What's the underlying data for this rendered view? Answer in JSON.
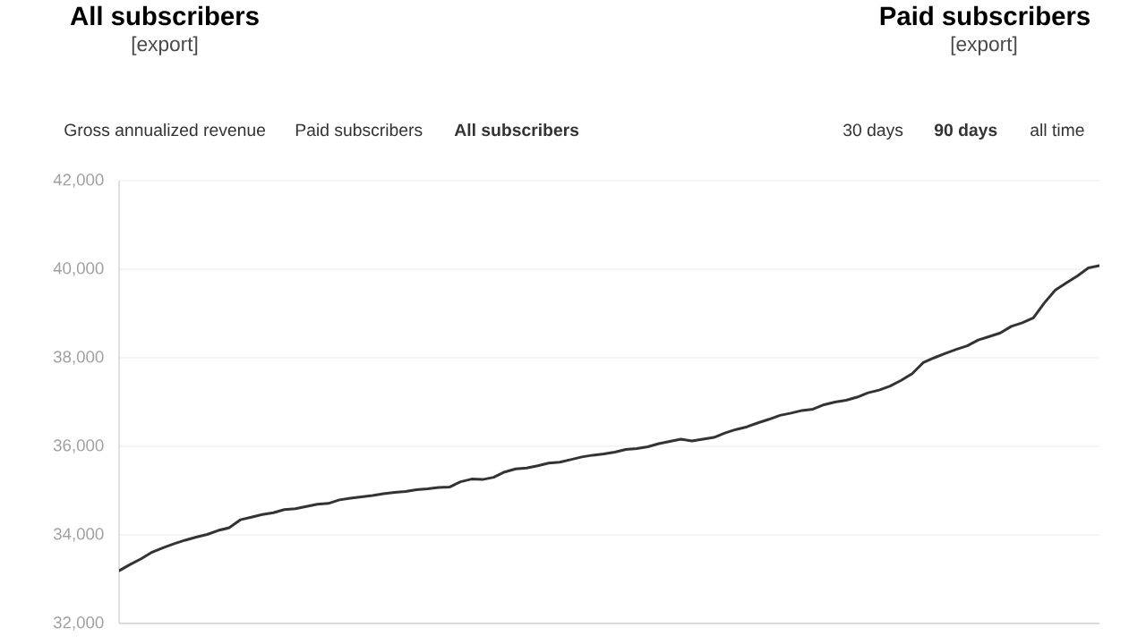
{
  "chart_data": {
    "type": "line",
    "annotations": [
      "All subscribers",
      "[export]",
      "Paid subscribers",
      "[export]",
      "Gross annualized revenue",
      "Paid subscribers",
      "All subscribers",
      "30 days",
      "90 days",
      "all time"
    ],
    "categories": [
      null,
      null,
      null,
      null,
      null,
      null,
      null,
      null,
      null,
      null,
      null,
      null,
      null,
      null,
      null,
      null,
      null,
      null,
      null,
      null,
      null,
      null,
      null,
      null,
      null,
      null,
      null,
      null,
      null,
      null,
      null,
      null,
      null,
      null,
      null,
      null,
      null,
      null,
      null,
      null,
      null,
      null,
      null,
      null,
      null,
      null,
      null,
      null,
      null,
      null,
      null,
      null,
      null,
      null,
      null,
      null,
      null,
      null,
      null,
      null,
      null,
      null,
      null,
      null,
      null,
      null,
      null,
      null,
      null,
      null,
      null,
      null,
      null,
      null,
      null,
      null,
      null,
      null,
      null,
      null,
      null,
      null,
      null,
      null,
      null,
      null,
      null,
      null,
      null,
      null
    ],
    "values": [
      33190,
      33330,
      33460,
      33610,
      33710,
      33800,
      33880,
      33950,
      34010,
      34100,
      34160,
      34340,
      34400,
      34460,
      34500,
      34570,
      34590,
      34640,
      34690,
      34710,
      34790,
      34830,
      34860,
      34890,
      34930,
      34960,
      34980,
      35020,
      35040,
      35070,
      35080,
      35200,
      35260,
      35250,
      35300,
      35420,
      35490,
      35510,
      35560,
      35620,
      35640,
      35700,
      35760,
      35800,
      35830,
      35870,
      35930,
      35950,
      35990,
      36060,
      36110,
      36160,
      36120,
      36160,
      36200,
      36300,
      36380,
      36440,
      36530,
      36610,
      36700,
      36750,
      36810,
      36840,
      36940,
      37000,
      37040,
      37110,
      37210,
      37270,
      37360,
      37490,
      37640,
      37890,
      38000,
      38100,
      38190,
      38270,
      38400,
      38480,
      38560,
      38710,
      38790,
      38900,
      39240,
      39530,
      39690,
      39850,
      40030,
      40080
    ],
    "color": "#333333",
    "ylim": [
      32000,
      42000
    ],
    "yticks": [
      {
        "value": 32000,
        "label": "32,000"
      },
      {
        "value": 34000,
        "label": "34,000"
      },
      {
        "value": 36000,
        "label": "36,000"
      },
      {
        "value": 38000,
        "label": "38,000"
      },
      {
        "value": 40000,
        "label": "40,000"
      },
      {
        "value": 42000,
        "label": "42,000"
      }
    ],
    "grid": "y",
    "tick_labels": "y"
  }
}
